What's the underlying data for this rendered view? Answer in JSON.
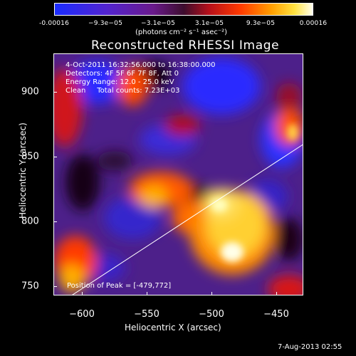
{
  "colorbar": {
    "tick_labels": [
      "-0.00016",
      "−9.3e−05",
      "−3.1e−05",
      "3.1e−05",
      "9.3e−05",
      "0.00016"
    ],
    "units": "(photons cm⁻² s⁻¹ asec⁻²)",
    "colors": [
      "#1e2aff",
      "#5b1ec8",
      "#6b1a8a",
      "#5a1240",
      "#c0101a",
      "#ff3a00",
      "#ff9a00",
      "#ffe030",
      "#ffffe8"
    ]
  },
  "title": "Reconstructed RHESSI Image",
  "info": {
    "time_range": "4-Oct-2011 16:32:56.000 to 16:38:00.000",
    "detectors": "Detectors: 4F 5F 6F 7F 8F, Att 0",
    "energy": "Energy Range: 12.0 - 25.0 keV",
    "method": "Clean     Total counts: 7.23E+03",
    "peak": "Position of Peak = [-479,772]"
  },
  "x_axis": {
    "label": "Heliocentric X (arcsec)",
    "ticks": [
      "−600",
      "−550",
      "−500",
      "−450"
    ]
  },
  "y_axis": {
    "label": "Heliocentric Y (arcsec)",
    "ticks": [
      "900",
      "850",
      "800",
      "750"
    ]
  },
  "timestamp": "7-Aug-2013 02:55"
}
